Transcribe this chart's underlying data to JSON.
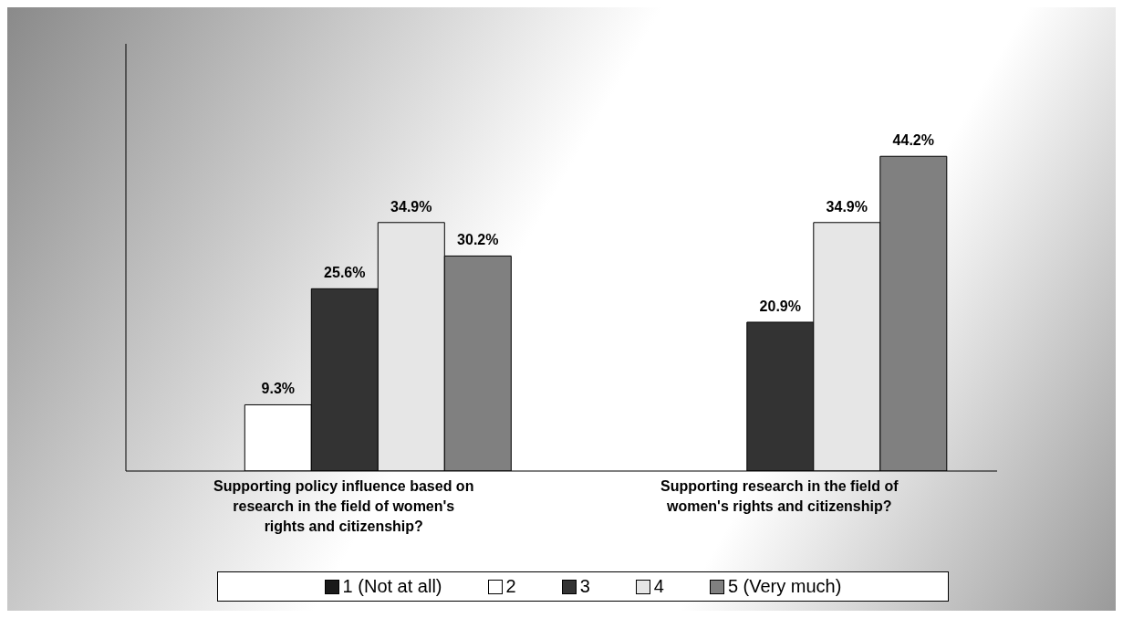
{
  "chart_data": {
    "type": "bar",
    "categories": [
      "Supporting policy influence based on research in the field of women's rights and citizenship?",
      "Supporting research in the field of women's rights and citizenship?"
    ],
    "series": [
      {
        "name": "1 (Not at all)",
        "color": "#1a1a1a",
        "values": [
          0,
          0
        ],
        "value_labels": [
          null,
          null
        ]
      },
      {
        "name": "2",
        "color": "#ffffff",
        "values": [
          9.3,
          0
        ],
        "value_labels": [
          "9.3%",
          null
        ]
      },
      {
        "name": "3",
        "color": "#333333",
        "values": [
          25.6,
          20.9
        ],
        "value_labels": [
          "25.6%",
          "20.9%"
        ]
      },
      {
        "name": "4",
        "color": "#e6e6e6",
        "values": [
          34.9,
          34.9
        ],
        "value_labels": [
          "34.9%",
          "34.9%"
        ]
      },
      {
        "name": "5 (Very much)",
        "color": "#808080",
        "values": [
          30.2,
          44.2
        ],
        "value_labels": [
          "30.2%",
          "44.2%"
        ]
      }
    ],
    "legend": "bottom",
    "tick_labels": "x"
  }
}
